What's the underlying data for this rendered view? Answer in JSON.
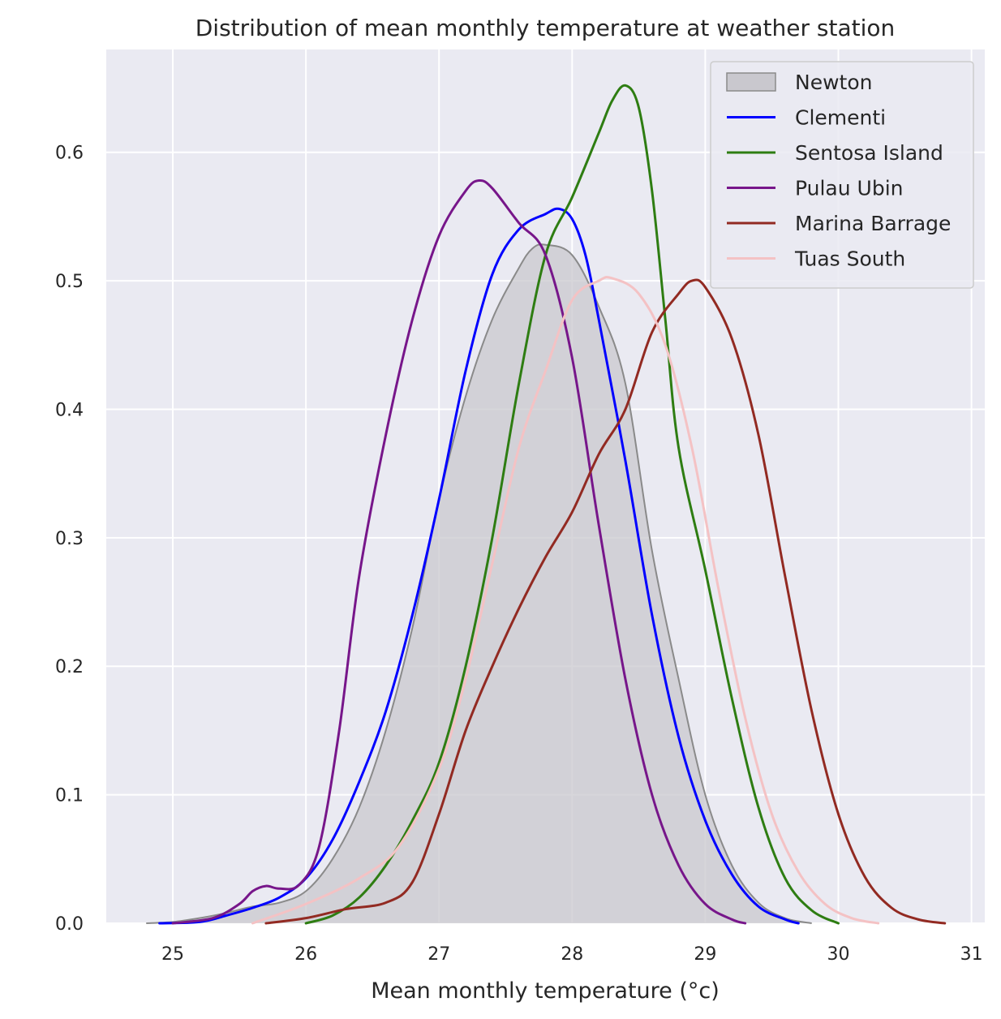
{
  "chart_data": {
    "type": "area",
    "title": "Distribution of mean monthly temperature at weather station",
    "xlabel": "Mean monthly temperature (°c)",
    "ylabel": "",
    "xlim": [
      24.5,
      31.1
    ],
    "ylim": [
      0.0,
      0.68
    ],
    "xticks": [
      25,
      26,
      27,
      28,
      29,
      30,
      31
    ],
    "yticks": [
      0.0,
      0.1,
      0.2,
      0.3,
      0.4,
      0.5,
      0.6
    ],
    "xtick_labels": [
      "25",
      "26",
      "27",
      "28",
      "29",
      "30",
      "31"
    ],
    "ytick_labels": [
      "0.0",
      "0.1",
      "0.2",
      "0.3",
      "0.4",
      "0.5",
      "0.6"
    ],
    "grid": true,
    "legend_position": "top-right",
    "background_color": "#eaeaf2",
    "series": [
      {
        "name": "Newton",
        "style": "filled",
        "color": "#8a8a8a",
        "fill": "#c9c8ce",
        "points": [
          [
            24.8,
            0.0
          ],
          [
            25.0,
            0.001
          ],
          [
            25.2,
            0.004
          ],
          [
            25.4,
            0.008
          ],
          [
            25.6,
            0.013
          ],
          [
            25.8,
            0.016
          ],
          [
            26.0,
            0.025
          ],
          [
            26.2,
            0.05
          ],
          [
            26.4,
            0.09
          ],
          [
            26.6,
            0.15
          ],
          [
            26.8,
            0.23
          ],
          [
            27.0,
            0.33
          ],
          [
            27.2,
            0.41
          ],
          [
            27.4,
            0.47
          ],
          [
            27.6,
            0.51
          ],
          [
            27.7,
            0.525
          ],
          [
            27.8,
            0.528
          ],
          [
            28.0,
            0.52
          ],
          [
            28.2,
            0.48
          ],
          [
            28.4,
            0.42
          ],
          [
            28.6,
            0.29
          ],
          [
            28.8,
            0.19
          ],
          [
            29.0,
            0.1
          ],
          [
            29.2,
            0.045
          ],
          [
            29.4,
            0.016
          ],
          [
            29.6,
            0.004
          ],
          [
            29.8,
            0.0
          ]
        ]
      },
      {
        "name": "Clementi",
        "style": "line",
        "color": "#0000ff",
        "points": [
          [
            24.9,
            0.0
          ],
          [
            25.2,
            0.001
          ],
          [
            25.4,
            0.006
          ],
          [
            25.6,
            0.012
          ],
          [
            25.8,
            0.02
          ],
          [
            26.0,
            0.035
          ],
          [
            26.2,
            0.065
          ],
          [
            26.4,
            0.11
          ],
          [
            26.6,
            0.165
          ],
          [
            26.8,
            0.24
          ],
          [
            27.0,
            0.33
          ],
          [
            27.2,
            0.43
          ],
          [
            27.4,
            0.505
          ],
          [
            27.6,
            0.54
          ],
          [
            27.8,
            0.552
          ],
          [
            27.9,
            0.556
          ],
          [
            28.0,
            0.548
          ],
          [
            28.1,
            0.52
          ],
          [
            28.2,
            0.47
          ],
          [
            28.4,
            0.36
          ],
          [
            28.6,
            0.24
          ],
          [
            28.8,
            0.145
          ],
          [
            29.0,
            0.08
          ],
          [
            29.2,
            0.038
          ],
          [
            29.4,
            0.013
          ],
          [
            29.6,
            0.003
          ],
          [
            29.7,
            0.0
          ]
        ]
      },
      {
        "name": "Sentosa Island",
        "style": "line",
        "color": "#2e7d12",
        "points": [
          [
            26.0,
            0.0
          ],
          [
            26.2,
            0.006
          ],
          [
            26.4,
            0.02
          ],
          [
            26.6,
            0.045
          ],
          [
            26.8,
            0.08
          ],
          [
            27.0,
            0.125
          ],
          [
            27.2,
            0.2
          ],
          [
            27.4,
            0.3
          ],
          [
            27.6,
            0.42
          ],
          [
            27.8,
            0.52
          ],
          [
            28.0,
            0.565
          ],
          [
            28.2,
            0.615
          ],
          [
            28.3,
            0.64
          ],
          [
            28.4,
            0.652
          ],
          [
            28.5,
            0.635
          ],
          [
            28.6,
            0.57
          ],
          [
            28.7,
            0.47
          ],
          [
            28.8,
            0.37
          ],
          [
            29.0,
            0.275
          ],
          [
            29.2,
            0.175
          ],
          [
            29.4,
            0.09
          ],
          [
            29.6,
            0.035
          ],
          [
            29.8,
            0.01
          ],
          [
            30.0,
            0.0
          ]
        ]
      },
      {
        "name": "Pulau Ubin",
        "style": "line",
        "color": "#77168a",
        "points": [
          [
            25.0,
            0.0
          ],
          [
            25.3,
            0.004
          ],
          [
            25.5,
            0.015
          ],
          [
            25.6,
            0.025
          ],
          [
            25.7,
            0.029
          ],
          [
            25.8,
            0.027
          ],
          [
            25.95,
            0.03
          ],
          [
            26.1,
            0.06
          ],
          [
            26.25,
            0.15
          ],
          [
            26.4,
            0.27
          ],
          [
            26.6,
            0.38
          ],
          [
            26.8,
            0.47
          ],
          [
            27.0,
            0.535
          ],
          [
            27.2,
            0.57
          ],
          [
            27.3,
            0.578
          ],
          [
            27.4,
            0.572
          ],
          [
            27.6,
            0.545
          ],
          [
            27.8,
            0.52
          ],
          [
            28.0,
            0.44
          ],
          [
            28.2,
            0.31
          ],
          [
            28.4,
            0.19
          ],
          [
            28.6,
            0.1
          ],
          [
            28.8,
            0.045
          ],
          [
            29.0,
            0.015
          ],
          [
            29.2,
            0.003
          ],
          [
            29.3,
            0.0
          ]
        ]
      },
      {
        "name": "Marina Barrage",
        "style": "line",
        "color": "#922a22",
        "points": [
          [
            25.7,
            0.0
          ],
          [
            26.0,
            0.004
          ],
          [
            26.3,
            0.011
          ],
          [
            26.6,
            0.016
          ],
          [
            26.8,
            0.032
          ],
          [
            27.0,
            0.085
          ],
          [
            27.2,
            0.15
          ],
          [
            27.4,
            0.2
          ],
          [
            27.6,
            0.245
          ],
          [
            27.8,
            0.285
          ],
          [
            28.0,
            0.32
          ],
          [
            28.2,
            0.365
          ],
          [
            28.4,
            0.4
          ],
          [
            28.6,
            0.46
          ],
          [
            28.8,
            0.49
          ],
          [
            28.9,
            0.5
          ],
          [
            29.0,
            0.495
          ],
          [
            29.2,
            0.455
          ],
          [
            29.4,
            0.38
          ],
          [
            29.6,
            0.27
          ],
          [
            29.8,
            0.165
          ],
          [
            30.0,
            0.085
          ],
          [
            30.2,
            0.036
          ],
          [
            30.4,
            0.012
          ],
          [
            30.6,
            0.003
          ],
          [
            30.8,
            0.0
          ]
        ]
      },
      {
        "name": "Tuas South",
        "style": "line",
        "color": "#f4c2c4",
        "points": [
          [
            25.6,
            0.0
          ],
          [
            26.0,
            0.015
          ],
          [
            26.4,
            0.035
          ],
          [
            26.7,
            0.06
          ],
          [
            27.0,
            0.12
          ],
          [
            27.2,
            0.19
          ],
          [
            27.4,
            0.28
          ],
          [
            27.6,
            0.37
          ],
          [
            27.8,
            0.43
          ],
          [
            28.0,
            0.485
          ],
          [
            28.2,
            0.5
          ],
          [
            28.3,
            0.502
          ],
          [
            28.5,
            0.49
          ],
          [
            28.7,
            0.45
          ],
          [
            28.9,
            0.37
          ],
          [
            29.1,
            0.26
          ],
          [
            29.3,
            0.16
          ],
          [
            29.5,
            0.085
          ],
          [
            29.7,
            0.04
          ],
          [
            29.9,
            0.015
          ],
          [
            30.1,
            0.004
          ],
          [
            30.3,
            0.0
          ]
        ]
      }
    ]
  }
}
